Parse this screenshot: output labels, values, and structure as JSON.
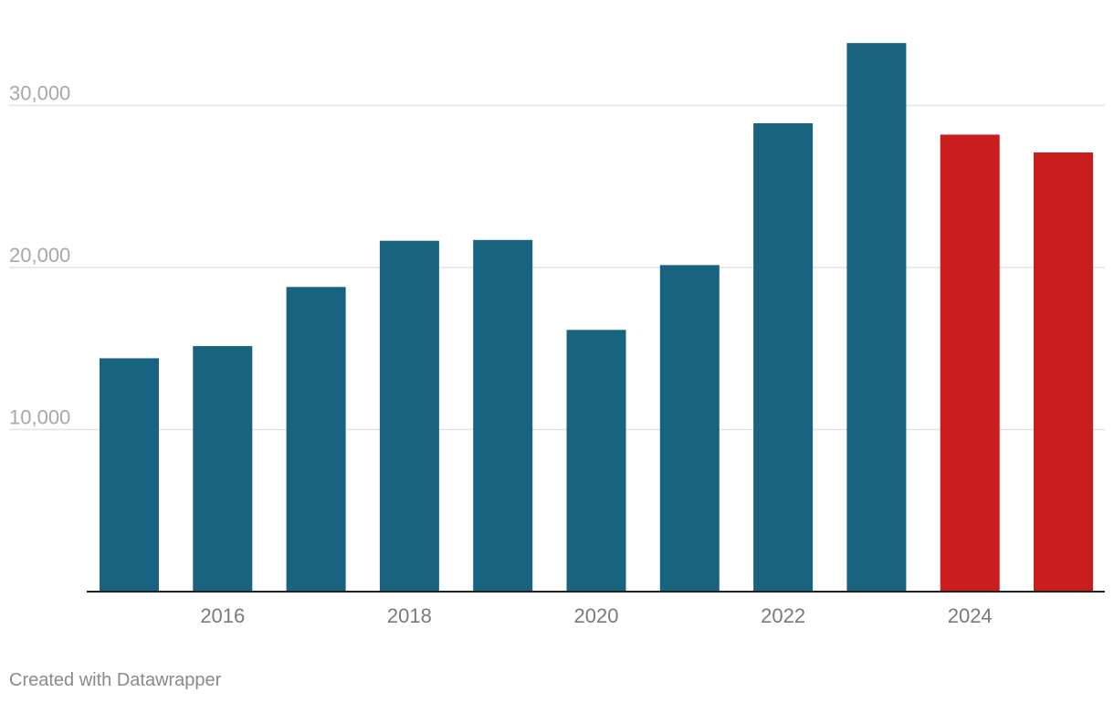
{
  "chart_data": {
    "type": "bar",
    "categories": [
      "2015",
      "2016",
      "2017",
      "2018",
      "2019",
      "2020",
      "2021",
      "2022",
      "2023",
      "2024",
      "2025"
    ],
    "values": [
      14400,
      15150,
      18800,
      21650,
      21700,
      16150,
      20150,
      28900,
      33850,
      28200,
      27100
    ],
    "bar_colors": [
      "#176380",
      "#176380",
      "#176380",
      "#176380",
      "#176380",
      "#176380",
      "#176380",
      "#176380",
      "#176380",
      "#c91d1e",
      "#c91d1e"
    ],
    "x_tick_labels": [
      "2016",
      "2018",
      "2020",
      "2022",
      "2024"
    ],
    "y_ticks": [
      10000,
      20000,
      30000
    ],
    "y_tick_labels": [
      "10,000",
      "20,000",
      "30,000"
    ],
    "ylim": [
      0,
      35000
    ],
    "grid": true,
    "legend": "none"
  },
  "footer": {
    "credit": "Created with Datawrapper"
  }
}
